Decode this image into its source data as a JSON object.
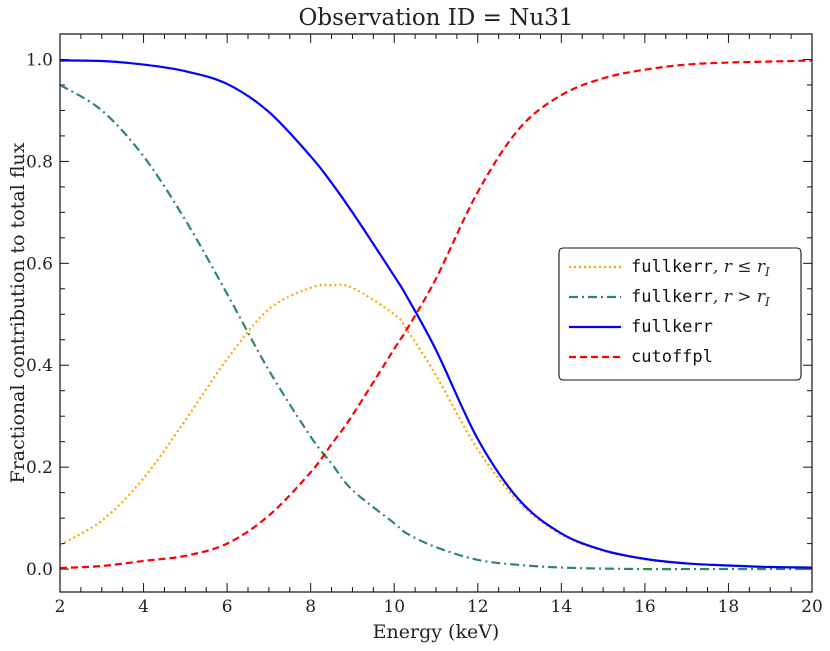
{
  "chart_data": {
    "type": "line",
    "title": "Observation ID = Nu31",
    "xlabel": "Energy (keV)",
    "ylabel": "Fractional contribution to total flux",
    "xlim": [
      2,
      20
    ],
    "ylim": [
      -0.045,
      1.05
    ],
    "xticks": [
      2,
      4,
      6,
      8,
      10,
      12,
      14,
      16,
      18,
      20
    ],
    "xtick_labels": [
      "2",
      "4",
      "6",
      "8",
      "10",
      "12",
      "14",
      "16",
      "18",
      "20"
    ],
    "yticks": [
      0.0,
      0.2,
      0.4,
      0.6,
      0.8,
      1.0
    ],
    "ytick_labels": [
      "0.0",
      "0.2",
      "0.4",
      "0.6",
      "0.8",
      "1.0"
    ],
    "grid": false,
    "legend_position": "center-right",
    "x": [
      2,
      3,
      4,
      5,
      6,
      7,
      8,
      8.5,
      9,
      10,
      10.3,
      11,
      12,
      13,
      14,
      15,
      16,
      17,
      18,
      19,
      20
    ],
    "series": [
      {
        "name": "fullkerr, r ≤ r_I",
        "legend_code": "fullkerr",
        "legend_suffix": ", r ≤ r",
        "legend_sub": "I",
        "color": "#ffa500",
        "dash": "dotted",
        "values": [
          0.048,
          0.095,
          0.178,
          0.292,
          0.412,
          0.51,
          0.552,
          0.557,
          0.552,
          0.5,
          0.47,
          0.38,
          0.235,
          0.13,
          0.068,
          0.036,
          0.019,
          0.011,
          0.007,
          0.004,
          0.003
        ]
      },
      {
        "name": "fullkerr, r > r_I",
        "legend_code": "fullkerr",
        "legend_suffix": ", r > r",
        "legend_sub": "I",
        "color": "#2e8b57",
        "dash": "dashdot",
        "values": [
          0.95,
          0.9,
          0.81,
          0.685,
          0.54,
          0.39,
          0.26,
          0.207,
          0.155,
          0.09,
          0.07,
          0.043,
          0.018,
          0.008,
          0.003,
          0.001,
          0.0,
          0.0,
          0.0,
          0.0,
          0.0
        ]
      },
      {
        "name": "fullkerr",
        "legend_code": "fullkerr",
        "legend_suffix": "",
        "legend_sub": "",
        "color": "#0000ff",
        "dash": "solid",
        "values": [
          0.998,
          0.997,
          0.99,
          0.977,
          0.952,
          0.897,
          0.81,
          0.758,
          0.7,
          0.575,
          0.535,
          0.43,
          0.255,
          0.135,
          0.07,
          0.037,
          0.02,
          0.011,
          0.007,
          0.004,
          0.003
        ]
      },
      {
        "name": "cutoffpl",
        "legend_code": "cutoffpl",
        "legend_suffix": "",
        "legend_sub": "",
        "color": "#ff0000",
        "dash": "dashed",
        "values": [
          0.002,
          0.006,
          0.016,
          0.026,
          0.05,
          0.105,
          0.19,
          0.245,
          0.302,
          0.432,
          0.47,
          0.57,
          0.74,
          0.865,
          0.93,
          0.963,
          0.98,
          0.99,
          0.994,
          0.996,
          0.998
        ]
      }
    ]
  }
}
